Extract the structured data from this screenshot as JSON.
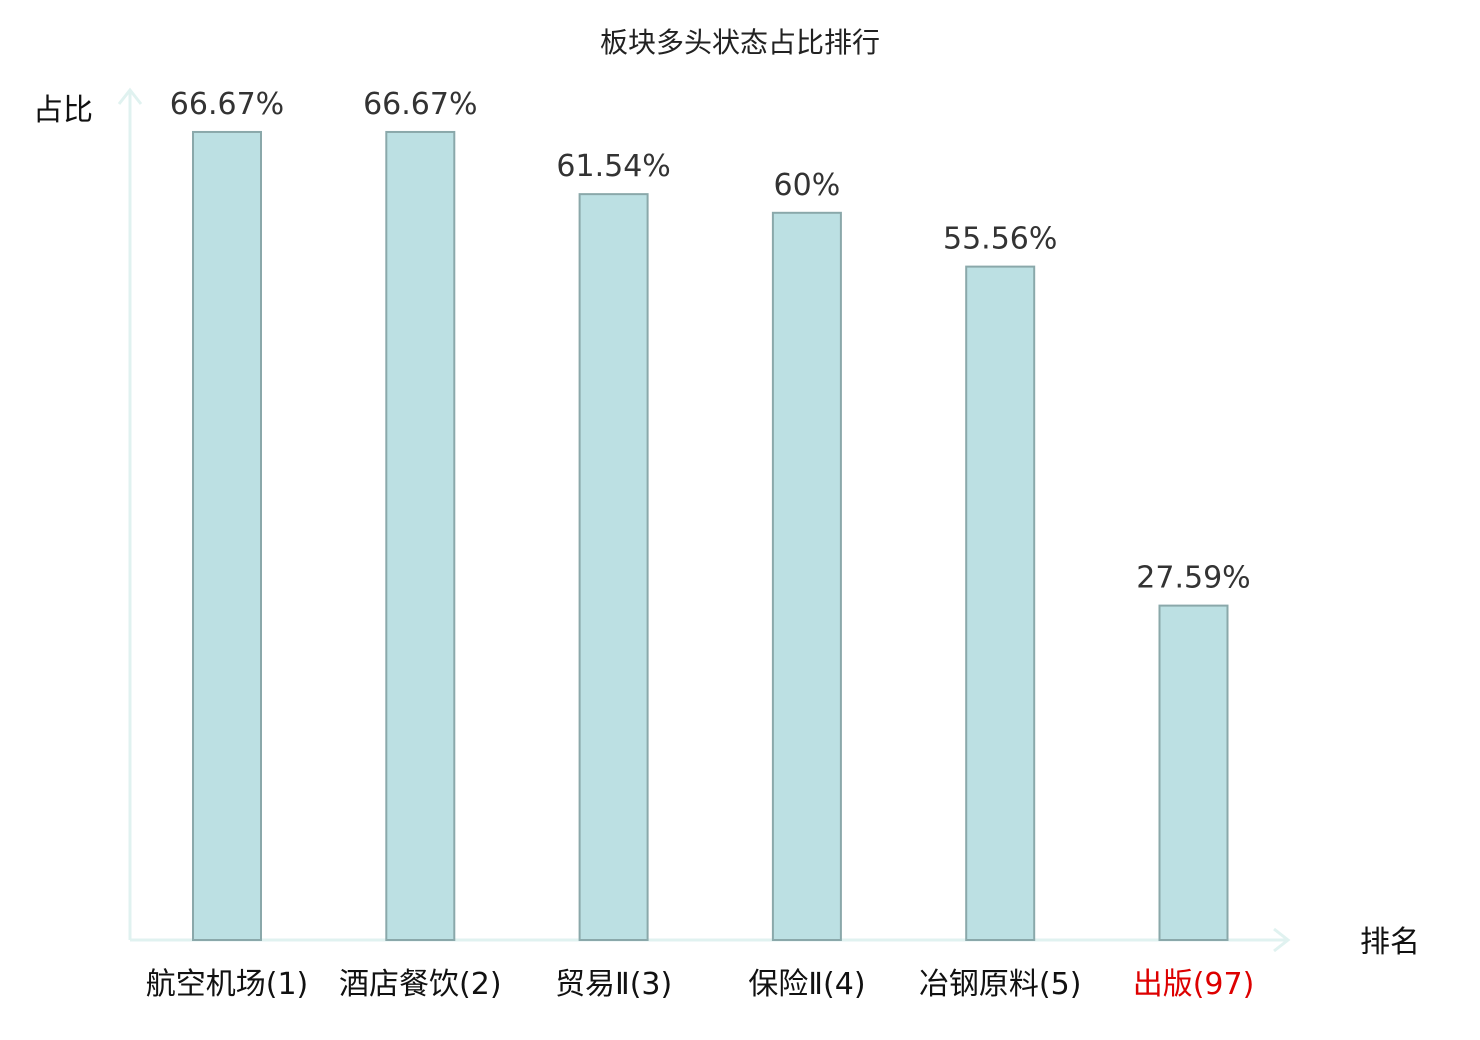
{
  "chart_data": {
    "type": "bar",
    "title": "板块多头状态占比排行",
    "xlabel": "排名",
    "ylabel": "占比",
    "categories": [
      "航空机场(1)",
      "酒店餐饮(2)",
      "贸易Ⅱ(3)",
      "保险Ⅱ(4)",
      "冶钢原料(5)",
      "出版(97)"
    ],
    "values": [
      66.67,
      66.67,
      61.54,
      60,
      55.56,
      27.59
    ],
    "value_labels": [
      "66.67%",
      "66.67%",
      "61.54%",
      "60%",
      "55.56%",
      "27.59%"
    ],
    "ylim": [
      0,
      70
    ],
    "grid": false,
    "colors": {
      "bar_fill": "#bce0e3",
      "bar_stroke": "#8aa8aa",
      "axis": "#e0f2f0",
      "tick_text": "#111111",
      "highlight_text": "#dd0000"
    },
    "highlight_index": 5
  }
}
